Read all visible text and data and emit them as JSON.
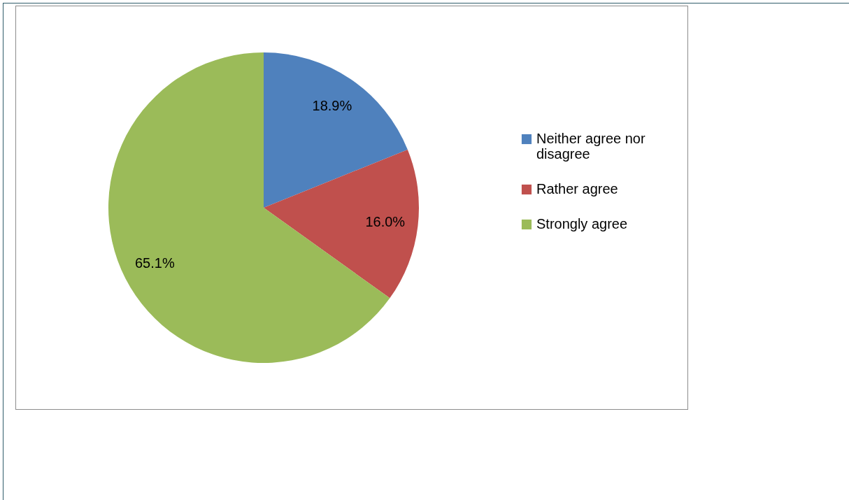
{
  "chart_data": {
    "type": "pie",
    "categories": [
      "Neither agree nor disagree",
      "Rather agree",
      "Strongly agree"
    ],
    "values": [
      18.9,
      16.0,
      65.1
    ],
    "colors": [
      "#4f81bd",
      "#c0504d",
      "#9bbb59"
    ],
    "value_labels": [
      "18.9%",
      "16.0%",
      "65.1%"
    ],
    "legend": "right"
  }
}
